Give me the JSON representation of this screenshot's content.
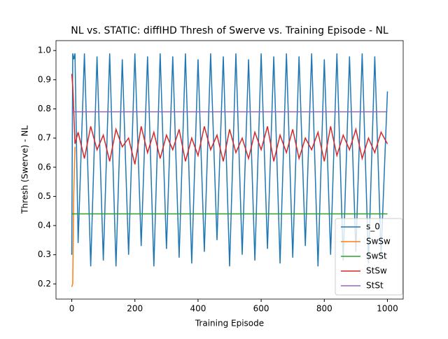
{
  "chart_data": {
    "type": "line",
    "title": "NL vs. STATIC: diffIHD Thresh of Swerve vs. Training Episode - NL",
    "x_label": "Training Episode",
    "y_label": "Thresh (Swerve) - NL",
    "x": [
      0,
      3,
      6,
      10,
      20,
      40,
      60,
      80,
      100,
      120,
      140,
      160,
      180,
      200,
      220,
      240,
      260,
      280,
      300,
      320,
      340,
      360,
      380,
      400,
      420,
      440,
      460,
      480,
      500,
      520,
      540,
      560,
      580,
      600,
      620,
      640,
      660,
      680,
      700,
      720,
      740,
      760,
      780,
      800,
      820,
      840,
      860,
      880,
      900,
      920,
      940,
      960,
      980,
      1000
    ],
    "series": [
      {
        "name": "s_0",
        "color": "#1f77b4",
        "values": [
          0.3,
          0.99,
          0.97,
          0.99,
          0.34,
          0.99,
          0.26,
          0.98,
          0.28,
          0.99,
          0.26,
          0.97,
          0.3,
          0.99,
          0.33,
          0.98,
          0.26,
          0.99,
          0.32,
          0.98,
          0.29,
          0.99,
          0.27,
          0.97,
          0.31,
          0.99,
          0.35,
          0.98,
          0.26,
          0.99,
          0.3,
          0.97,
          0.28,
          0.99,
          0.32,
          0.98,
          0.27,
          0.99,
          0.29,
          0.98,
          0.33,
          0.99,
          0.26,
          0.97,
          0.3,
          0.99,
          0.28,
          0.98,
          0.31,
          0.99,
          0.27,
          0.98,
          0.3,
          0.86
        ]
      },
      {
        "name": "SwSw",
        "color": "#ff7f0e",
        "values": [
          0.19,
          0.2,
          0.5,
          0.67,
          null,
          null,
          null,
          null,
          null,
          null,
          null,
          null,
          null,
          null,
          null,
          null,
          null,
          null,
          null,
          null,
          null,
          null,
          null,
          null,
          null,
          null,
          null,
          null,
          null,
          null,
          null,
          null,
          null,
          null,
          null,
          null,
          null,
          null,
          null,
          null,
          null,
          null,
          null,
          null,
          null,
          null,
          null,
          null,
          null,
          null,
          null,
          null,
          null,
          null
        ]
      },
      {
        "name": "SwSt",
        "color": "#2ca02c",
        "values": [
          0.44,
          0.44,
          0.44,
          0.44,
          0.44,
          0.44,
          0.44,
          0.44,
          0.44,
          0.44,
          0.44,
          0.44,
          0.44,
          0.44,
          0.44,
          0.44,
          0.44,
          0.44,
          0.44,
          0.44,
          0.44,
          0.44,
          0.44,
          0.44,
          0.44,
          0.44,
          0.44,
          0.44,
          0.44,
          0.44,
          0.44,
          0.44,
          0.44,
          0.44,
          0.44,
          0.44,
          0.44,
          0.44,
          0.44,
          0.44,
          0.44,
          0.44,
          0.44,
          0.44,
          0.44,
          0.44,
          0.44,
          0.44,
          0.44,
          0.44,
          0.44,
          0.44,
          0.44,
          0.44
        ]
      },
      {
        "name": "StSw",
        "color": "#d62728",
        "values": [
          0.92,
          0.88,
          0.8,
          0.68,
          0.72,
          0.63,
          0.74,
          0.66,
          0.71,
          0.62,
          0.73,
          0.67,
          0.7,
          0.61,
          0.74,
          0.65,
          0.72,
          0.63,
          0.71,
          0.66,
          0.73,
          0.62,
          0.7,
          0.64,
          0.74,
          0.66,
          0.71,
          0.62,
          0.73,
          0.65,
          0.7,
          0.63,
          0.72,
          0.66,
          0.74,
          0.62,
          0.71,
          0.65,
          0.73,
          0.63,
          0.7,
          0.66,
          0.72,
          0.62,
          0.74,
          0.64,
          0.71,
          0.66,
          0.73,
          0.63,
          0.7,
          0.65,
          0.72,
          0.68
        ]
      },
      {
        "name": "StSt",
        "color": "#9467bd",
        "values": [
          0.79,
          0.79,
          0.79,
          0.79,
          0.79,
          0.79,
          0.79,
          0.79,
          0.79,
          0.79,
          0.79,
          0.79,
          0.79,
          0.79,
          0.79,
          0.79,
          0.79,
          0.79,
          0.79,
          0.79,
          0.79,
          0.79,
          0.79,
          0.79,
          0.79,
          0.79,
          0.79,
          0.79,
          0.79,
          0.79,
          0.79,
          0.79,
          0.79,
          0.79,
          0.79,
          0.79,
          0.79,
          0.79,
          0.79,
          0.79,
          0.79,
          0.79,
          0.79,
          0.79,
          0.79,
          0.79,
          0.79,
          0.79,
          0.79,
          0.79,
          0.79,
          0.79,
          0.79,
          0.79
        ]
      }
    ],
    "xlim": [
      -50,
      1050
    ],
    "xticks": [
      0,
      200,
      400,
      600,
      800,
      1000
    ],
    "ylim": [
      0.148,
      1.034
    ],
    "yticks": [
      0.2,
      0.3,
      0.4,
      0.5,
      0.6,
      0.7,
      0.8,
      0.9,
      {
        "value": 1,
        "label": "1.0"
      }
    ],
    "legend": "lower right"
  }
}
